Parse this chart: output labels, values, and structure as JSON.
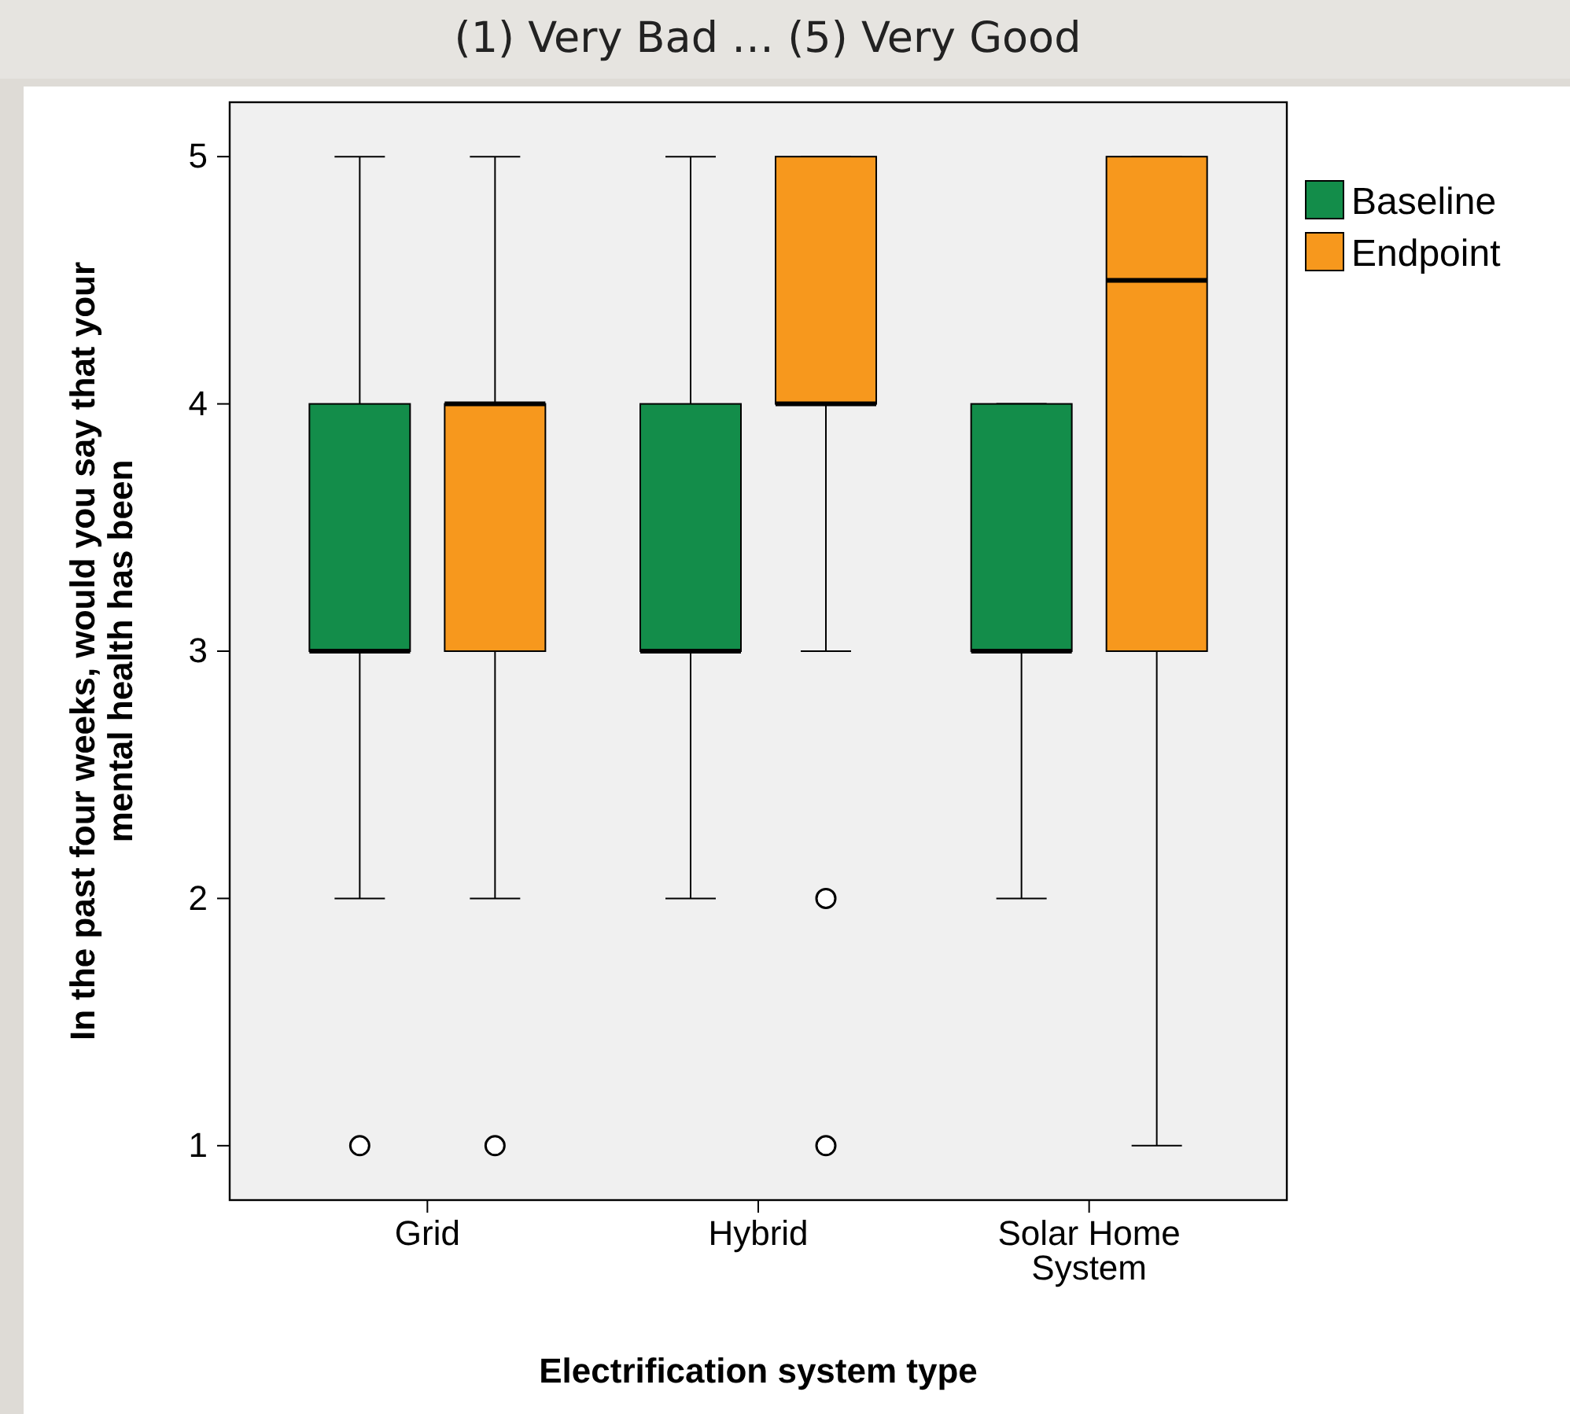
{
  "chart_data": {
    "type": "box",
    "title": "(1) Very Bad … (5) Very Good",
    "xlabel": "Electrification system type",
    "ylabel": "In the past four weeks, would you say that your mental health has been",
    "categories": [
      "Grid",
      "Hybrid",
      "Solar Home System"
    ],
    "series": [
      {
        "name": "Baseline",
        "color": "#138d4a",
        "boxes": [
          {
            "low": 2,
            "q1": 3,
            "median": 3,
            "q3": 4,
            "high": 5,
            "outliers": [
              1
            ]
          },
          {
            "low": 2,
            "q1": 3,
            "median": 3,
            "q3": 4,
            "high": 5
          },
          {
            "low": 2,
            "q1": 3,
            "median": 3,
            "q3": 4,
            "high": 4
          }
        ]
      },
      {
        "name": "Endpoint",
        "color": "#f7981d",
        "boxes": [
          {
            "low": 2,
            "q1": 3,
            "median": 4,
            "q3": 4,
            "high": 5,
            "outliers": [
              1
            ]
          },
          {
            "low": 3,
            "q1": 4,
            "median": 4,
            "q3": 5,
            "high": 5,
            "outliers": [
              2,
              1
            ]
          },
          {
            "low": 1,
            "q1": 3,
            "median": 4.5,
            "q3": 5,
            "high": 5
          }
        ]
      }
    ],
    "ylim": [
      0.78,
      5.22
    ],
    "yticks": [
      1,
      2,
      3,
      4,
      5
    ],
    "grid": false,
    "legend": "top right"
  }
}
